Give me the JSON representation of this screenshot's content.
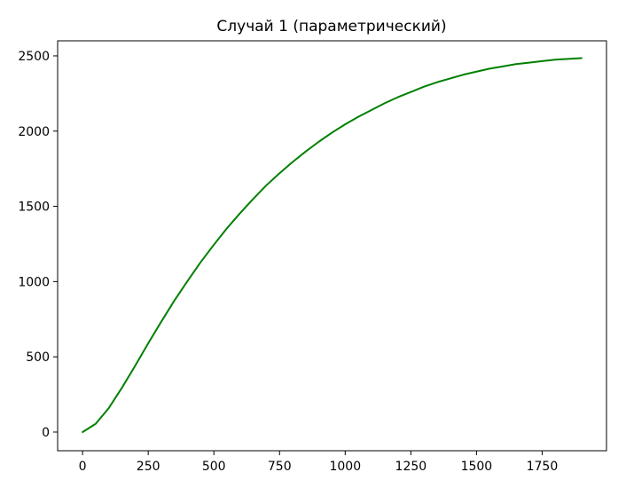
{
  "chart_data": {
    "type": "line",
    "title": "Случай 1 (параметрический)",
    "xlabel": "",
    "ylabel": "",
    "xlim": [
      -95,
      1995
    ],
    "ylim": [
      -124,
      2600
    ],
    "x_ticks": [
      0,
      250,
      500,
      750,
      1000,
      1250,
      1500,
      1750
    ],
    "x_tick_labels": [
      "0",
      "250",
      "500",
      "750",
      "1000",
      "1250",
      "1500",
      "1750"
    ],
    "y_ticks": [
      0,
      500,
      1000,
      1500,
      2000,
      2500
    ],
    "y_tick_labels": [
      "0",
      "500",
      "1000",
      "1500",
      "2000",
      "2500"
    ],
    "grid": false,
    "series": [
      {
        "color": "#008000",
        "x": [
          0,
          50,
          100,
          150,
          200,
          250,
          300,
          350,
          400,
          450,
          500,
          550,
          600,
          650,
          700,
          750,
          800,
          850,
          900,
          950,
          1000,
          1050,
          1100,
          1150,
          1200,
          1250,
          1300,
          1350,
          1400,
          1450,
          1500,
          1550,
          1600,
          1650,
          1700,
          1750,
          1800,
          1850,
          1900
        ],
        "values": [
          0,
          55,
          160,
          295,
          440,
          590,
          735,
          875,
          1005,
          1130,
          1245,
          1355,
          1455,
          1550,
          1640,
          1720,
          1795,
          1865,
          1930,
          1990,
          2045,
          2095,
          2140,
          2185,
          2225,
          2260,
          2295,
          2325,
          2350,
          2375,
          2395,
          2415,
          2430,
          2445,
          2455,
          2465,
          2475,
          2480,
          2485
        ]
      }
    ]
  }
}
